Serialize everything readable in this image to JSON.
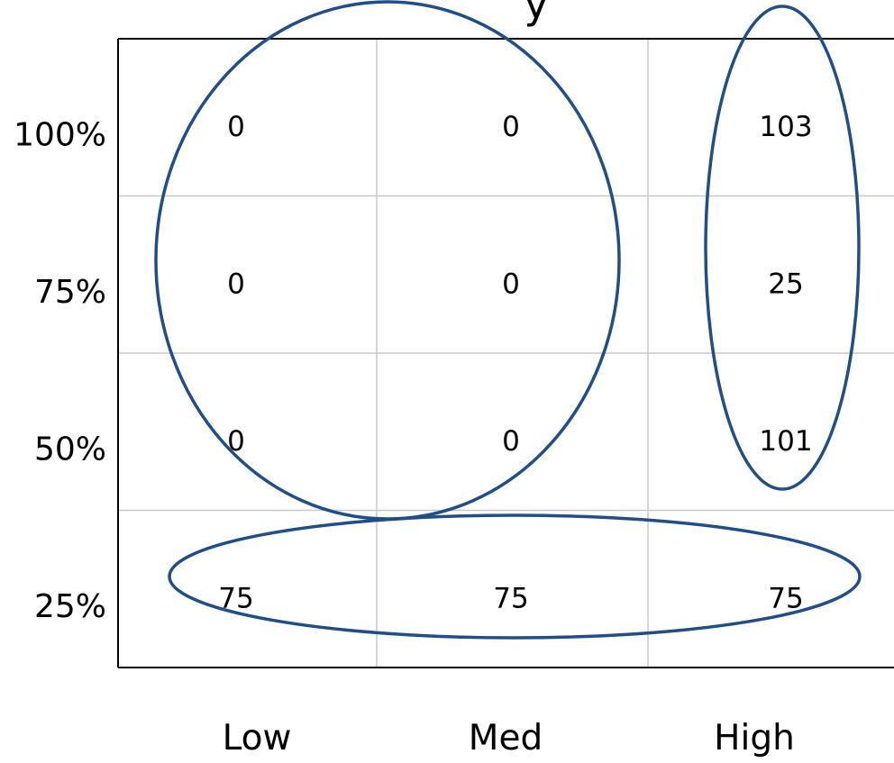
{
  "chart_data": {
    "type": "heatmap",
    "title": "",
    "title_fragment": "y",
    "xlabel": "",
    "ylabel": "",
    "x_categories": [
      "Low",
      "Med",
      "High"
    ],
    "y_categories": [
      "100%",
      "75%",
      "50%",
      "25%"
    ],
    "values": [
      [
        0,
        0,
        103
      ],
      [
        0,
        0,
        25
      ],
      [
        0,
        0,
        101
      ],
      [
        75,
        75,
        75
      ]
    ],
    "grid": true,
    "highlights": [
      {
        "shape": "circle",
        "rows": [
          "100%",
          "75%",
          "50%"
        ],
        "columns": [
          "Low",
          "Med"
        ]
      },
      {
        "shape": "ellipse",
        "rows": [
          "100%",
          "75%",
          "50%"
        ],
        "columns": [
          "High"
        ]
      },
      {
        "shape": "ellipse",
        "rows": [
          "25%"
        ],
        "columns": [
          "Low",
          "Med",
          "High"
        ]
      }
    ],
    "colors": {
      "highlight": "#1f4e88",
      "grid": "#c8c8c8",
      "axis": "#000000",
      "text": "#000000",
      "background": "#ffffff"
    }
  }
}
